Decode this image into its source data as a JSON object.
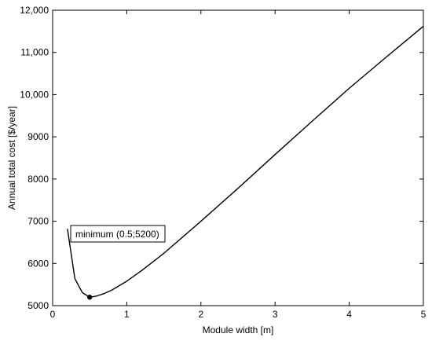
{
  "chart_data": {
    "type": "line",
    "title": "",
    "xlabel": "Module width [m]",
    "ylabel": "Annual total cost [$/year]",
    "xlim": [
      0,
      5
    ],
    "ylim": [
      5000,
      12000
    ],
    "grid": false,
    "x_ticks": [
      0,
      1,
      2,
      3,
      4,
      5
    ],
    "x_tick_labels": [
      "0",
      "1",
      "2",
      "3",
      "4",
      "5"
    ],
    "y_ticks": [
      5000,
      6000,
      7000,
      8000,
      9000,
      10000,
      11000,
      12000
    ],
    "y_tick_labels": [
      "5000",
      "6000",
      "7000",
      "8000",
      "9000",
      "10,000",
      "11,000",
      "12,000"
    ],
    "series": [
      {
        "color": "#000000",
        "x": [
          0.2,
          0.3,
          0.4,
          0.5,
          0.6,
          0.7,
          0.8,
          1.0,
          1.2,
          1.5,
          2.0,
          2.5,
          3.0,
          3.5,
          4.0,
          4.5,
          5.0
        ],
        "y": [
          6820,
          5640,
          5310,
          5200,
          5230,
          5290,
          5370,
          5580,
          5830,
          6240,
          7000,
          7780,
          8580,
          9370,
          10150,
          10890,
          11620
        ]
      }
    ],
    "annotations": [
      {
        "text": "minimum (0.5;5200)",
        "point": [
          0.5,
          5200
        ],
        "marker": "filled-circle"
      }
    ]
  }
}
